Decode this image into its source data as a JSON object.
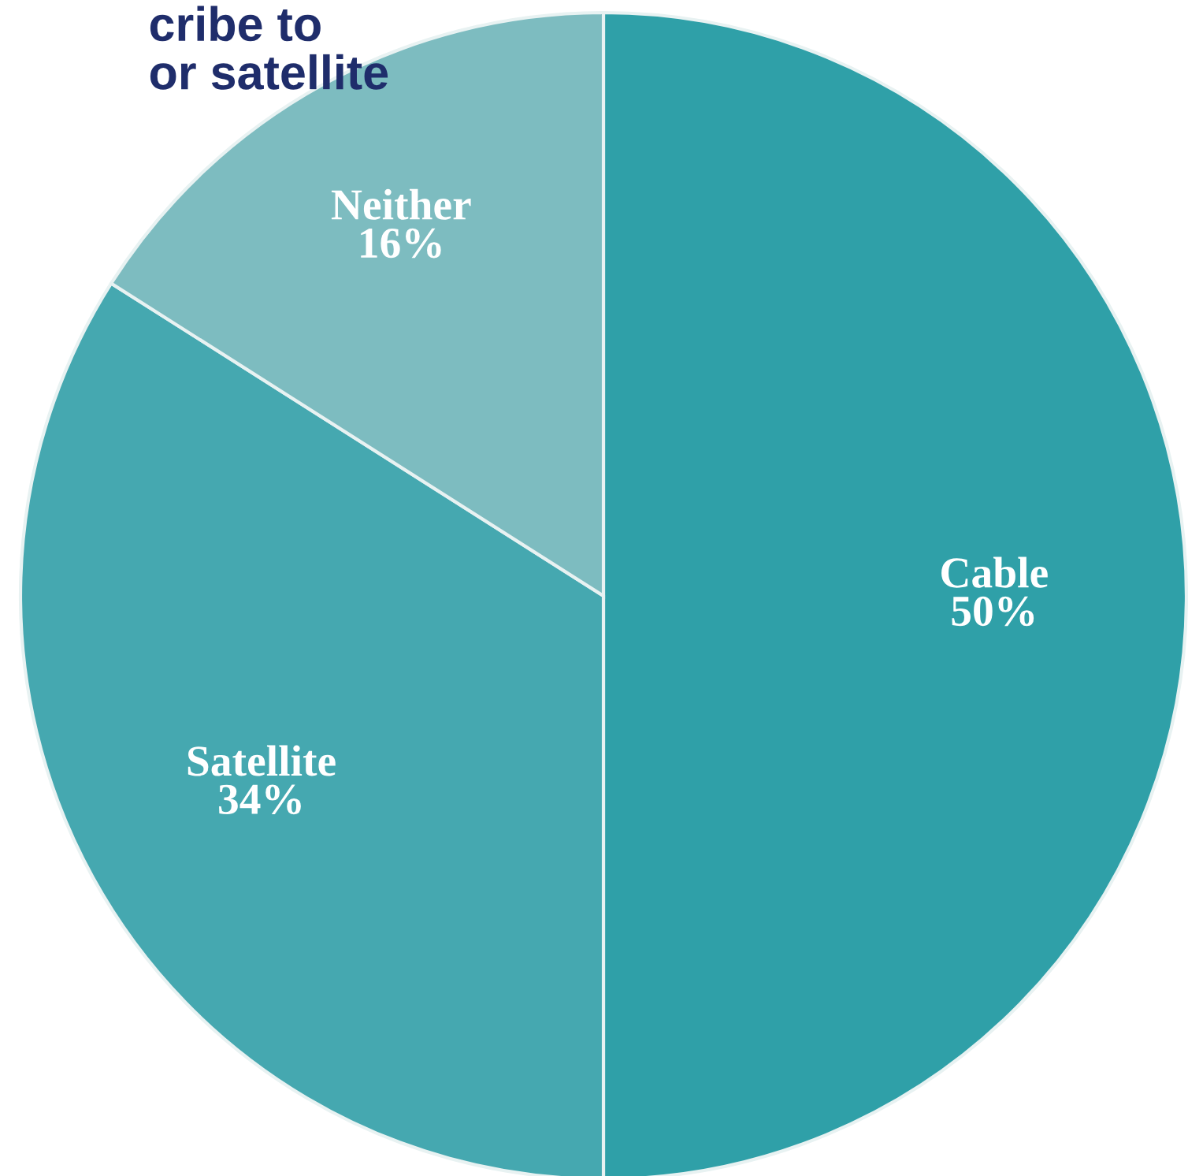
{
  "chart_data": {
    "type": "pie",
    "title": "cribe to\nor satellite",
    "categories": [
      "Cable",
      "Satellite",
      "Neither"
    ],
    "values": [
      50,
      34,
      16
    ],
    "value_labels": [
      "50%",
      "34%",
      "16%"
    ],
    "colors": [
      "#2fa0a8",
      "#45a8b0",
      "#7dbcc0"
    ]
  }
}
